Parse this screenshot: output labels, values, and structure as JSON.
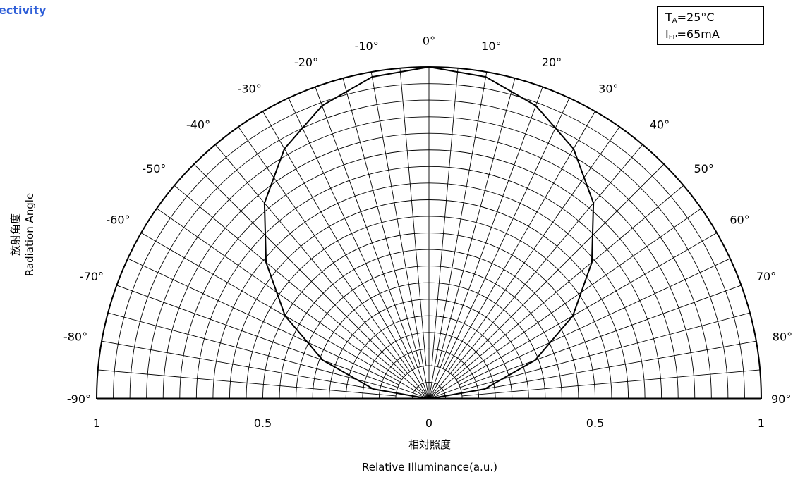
{
  "title": "ectivity",
  "conditions": {
    "ta_symbol": "T",
    "ta_sub": "A",
    "ta_value": "=25°C",
    "ifp_symbol": "I",
    "ifp_sub": "FP",
    "ifp_value": "=65mA"
  },
  "ylabel_jp": "放射角度",
  "ylabel_en": "Radiation Angle",
  "xlabel_jp": "相対照度",
  "xlabel_en": "Relative  Illuminance(a.u.)",
  "colors": {
    "title": "#2f5fd8",
    "grid": "#000000",
    "curve": "#000000"
  },
  "chart_data": {
    "type": "polar",
    "angle_unit": "degrees",
    "angle_range": [
      -90,
      90
    ],
    "radius_range": [
      0,
      1
    ],
    "grid": true,
    "angle_grid_step": 5,
    "radius_grid_step": 0.05,
    "angle_tick_values": [
      -90,
      -80,
      -70,
      -60,
      -50,
      -40,
      -30,
      -20,
      -10,
      0,
      10,
      20,
      30,
      40,
      50,
      60,
      70,
      80,
      90
    ],
    "angle_tick_labels_left": [
      "-90°",
      "-80°",
      "-70°",
      "-60°",
      "-50°",
      "-40°",
      "-30°",
      "-20°",
      "-10°",
      "0°"
    ],
    "angle_tick_labels_right": [
      "10°",
      "20°",
      "30°",
      "40°",
      "50°",
      "60°",
      "70°",
      "80°",
      "90°"
    ],
    "radial_tick_values": [
      -1,
      -0.5,
      0,
      0.5,
      1
    ],
    "radial_tick_labels": [
      "1",
      "0.5",
      "0",
      "0.5",
      "1"
    ],
    "series": [
      {
        "angles": [
          -90,
          -80,
          -70,
          -60,
          -50,
          -40,
          -30,
          -20,
          -10,
          0,
          10,
          20,
          30,
          40,
          50,
          60,
          70,
          80,
          90
        ],
        "values": [
          0,
          0.17,
          0.34,
          0.5,
          0.64,
          0.77,
          0.87,
          0.94,
          0.985,
          1,
          0.985,
          0.94,
          0.87,
          0.77,
          0.64,
          0.5,
          0.34,
          0.17,
          0
        ]
      }
    ]
  }
}
